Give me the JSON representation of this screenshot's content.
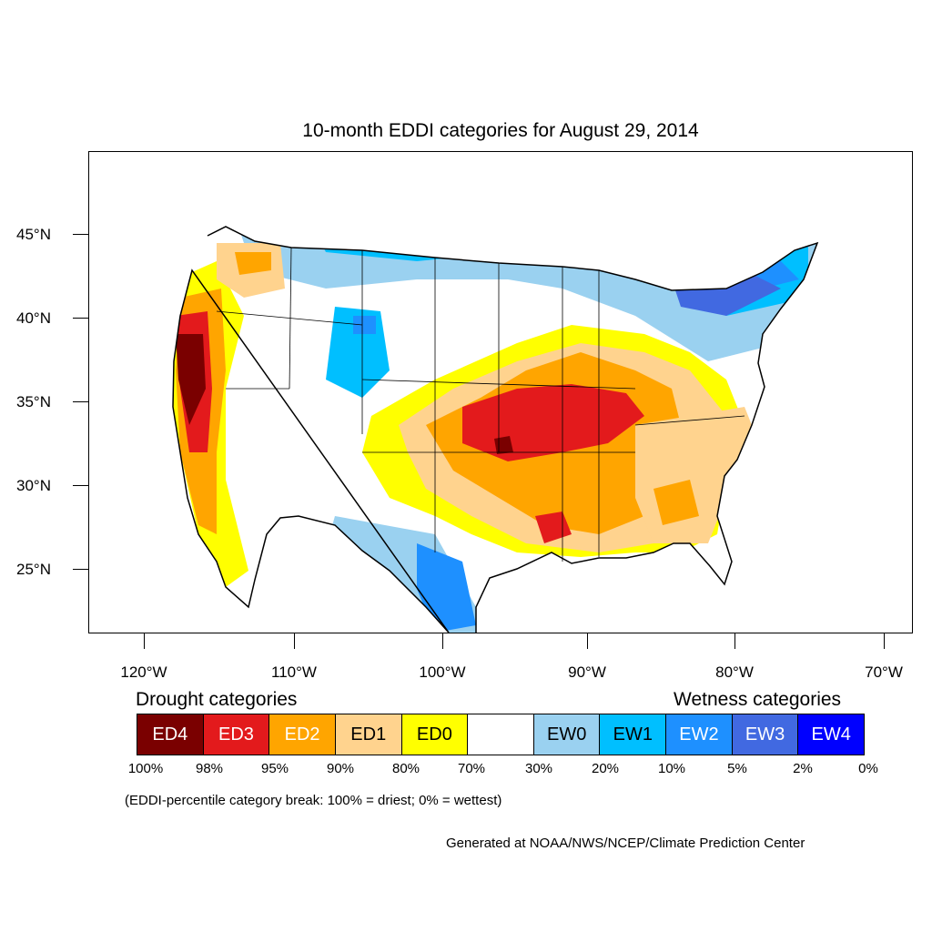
{
  "title": "10-month EDDI categories for August 29, 2014",
  "lat_labels": [
    "45°N",
    "40°N",
    "35°N",
    "30°N",
    "25°N"
  ],
  "lon_labels": [
    "120°W",
    "110°W",
    "100°W",
    "90°W",
    "80°W",
    "70°W"
  ],
  "drought_title": "Drought categories",
  "wetness_title": "Wetness categories",
  "legend": [
    {
      "label": "ED4",
      "color": "#7a0000",
      "text_color": "#ffffff"
    },
    {
      "label": "ED3",
      "color": "#e31a1c",
      "text_color": "#ffffff"
    },
    {
      "label": "ED2",
      "color": "#ffa500",
      "text_color": "#ffffff"
    },
    {
      "label": "ED1",
      "color": "#ffd38e",
      "text_color": "#000000"
    },
    {
      "label": "ED0",
      "color": "#ffff00",
      "text_color": "#000000"
    },
    {
      "label": "",
      "color": "#ffffff",
      "text_color": "#000000"
    },
    {
      "label": "EW0",
      "color": "#9ad1f0",
      "text_color": "#000000"
    },
    {
      "label": "EW1",
      "color": "#00bfff",
      "text_color": "#000000"
    },
    {
      "label": "EW2",
      "color": "#1e90ff",
      "text_color": "#ffffff"
    },
    {
      "label": "EW3",
      "color": "#4169e1",
      "text_color": "#ffffff"
    },
    {
      "label": "EW4",
      "color": "#0000ff",
      "text_color": "#ffffff"
    }
  ],
  "percent_breaks": [
    "100%",
    "98%",
    "95%",
    "90%",
    "80%",
    "70%",
    "30%",
    "20%",
    "10%",
    "5%",
    "2%",
    "0%"
  ],
  "note": "(EDDI-percentile category break: 100% = driest; 0% = wettest)",
  "credit": "Generated at NOAA/NWS/NCEP/Climate Prediction Center"
}
